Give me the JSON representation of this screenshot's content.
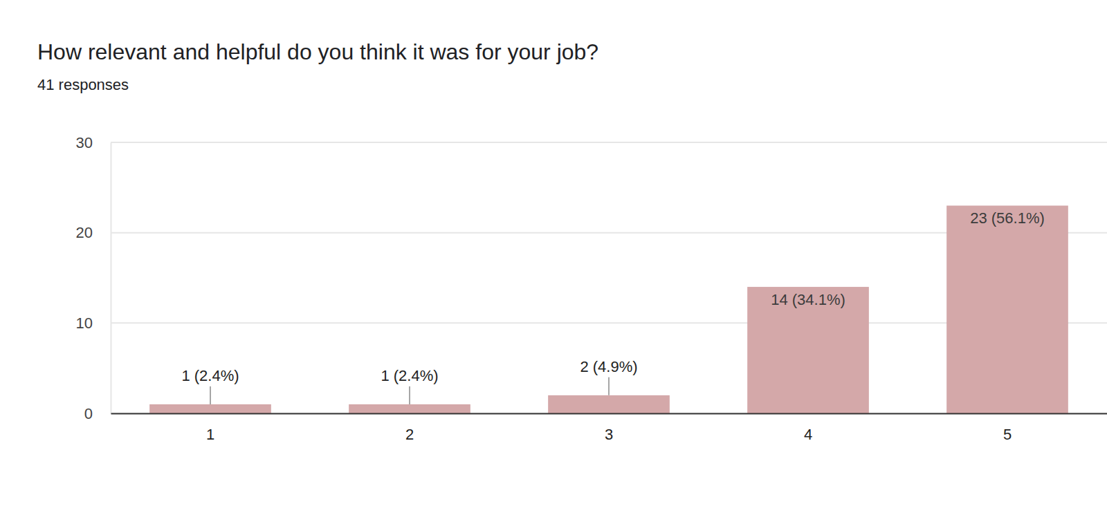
{
  "chart_data": {
    "type": "bar",
    "title": "How relevant and helpful do you think it was for your job?",
    "subtitle": "41 responses",
    "categories": [
      "1",
      "2",
      "3",
      "4",
      "5"
    ],
    "values": [
      1,
      1,
      2,
      14,
      23
    ],
    "value_labels": [
      "1 (2.4%)",
      "1 (2.4%)",
      "2 (4.9%)",
      "14 (34.1%)",
      "23 (56.1%)"
    ],
    "data_labels": true,
    "color": "#d4a8a9",
    "ylim": [
      0,
      30
    ],
    "yticks": [
      0,
      10,
      20,
      30
    ],
    "grid": true
  }
}
